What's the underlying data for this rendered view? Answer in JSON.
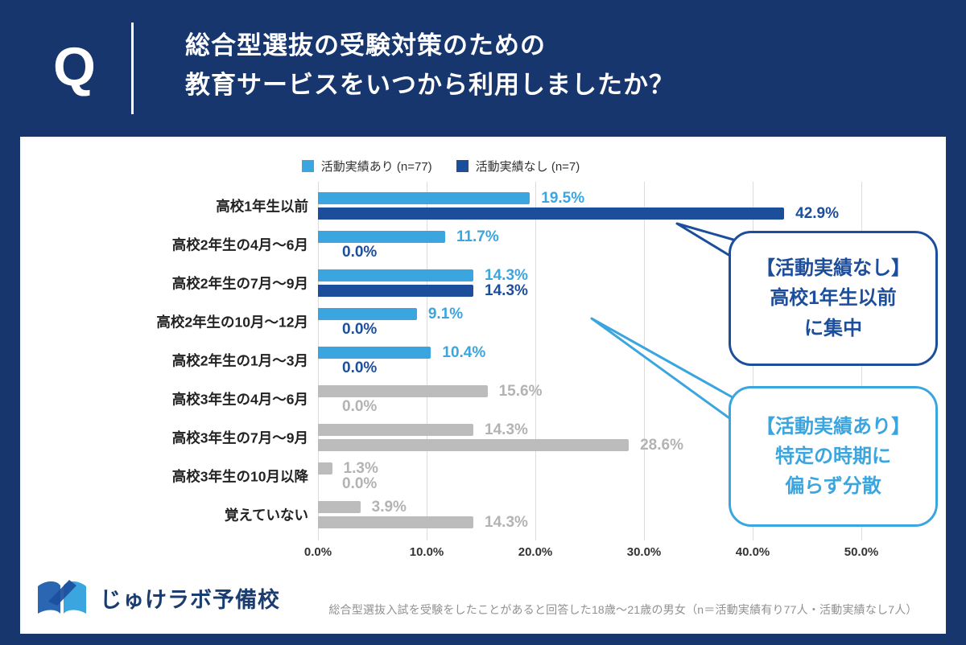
{
  "header": {
    "q_label": "Q",
    "title_line1": "総合型選抜の受験対策のための",
    "title_line2": "教育サービスをいつから利用しましたか？"
  },
  "legend": [
    {
      "label": "活動実績あり (n=77)",
      "color": "#3AA5DE"
    },
    {
      "label": "活動実績なし (n=7)",
      "color": "#1C4E9C"
    }
  ],
  "chart_data": {
    "type": "bar",
    "orientation": "horizontal",
    "title": "総合型選抜の受験対策のための教育サービスをいつから利用しましたか？",
    "categories": [
      "高校1年生以前",
      "高校2年生の4月〜6月",
      "高校2年生の7月〜9月",
      "高校2年生の10月〜12月",
      "高校2年生の1月〜3月",
      "高校3年生の4月〜6月",
      "高校3年生の7月〜9月",
      "高校3年生の10月以降",
      "覚えていない"
    ],
    "series": [
      {
        "name": "活動実績あり (n=77)",
        "color": "#3AA5DE",
        "values": [
          19.5,
          11.7,
          14.3,
          9.1,
          10.4,
          15.6,
          14.3,
          1.3,
          3.9
        ]
      },
      {
        "name": "活動実績なし (n=7)",
        "color": "#1C4E9C",
        "values": [
          42.9,
          0.0,
          14.3,
          0.0,
          0.0,
          0.0,
          28.6,
          0.0,
          14.3
        ]
      }
    ],
    "xlim": [
      0,
      50
    ],
    "x_ticks": [
      "0.0%",
      "10.0%",
      "20.0%",
      "30.0%",
      "40.0%",
      "50.0%"
    ],
    "grid": true,
    "legend_position": "top",
    "grayed_from_index": 5
  },
  "callouts": [
    {
      "lines": [
        "【活動実績なし】",
        "高校1年生以前",
        "に集中"
      ],
      "color": "#1C4E9C"
    },
    {
      "lines": [
        "【活動実績あり】",
        "特定の時期に",
        "偏らず分散"
      ],
      "color": "#3AA5DE"
    }
  ],
  "footer": {
    "logo_text": "じゅけラボ予備校",
    "note": "総合型選抜入試を受験をしたことがあると回答した18歳〜21歳の男女（n＝活動実績有り77人・活動実績なし7人）"
  },
  "colors": {
    "background_navy": "#16366D",
    "ari_blue": "#3AA5DE",
    "nashi_navy": "#1C4E9C",
    "gray_bar": "#BCBCBC",
    "gray_label": "#B3B3B3",
    "grid_line": "#DCDCDC",
    "note_gray": "#919191"
  }
}
